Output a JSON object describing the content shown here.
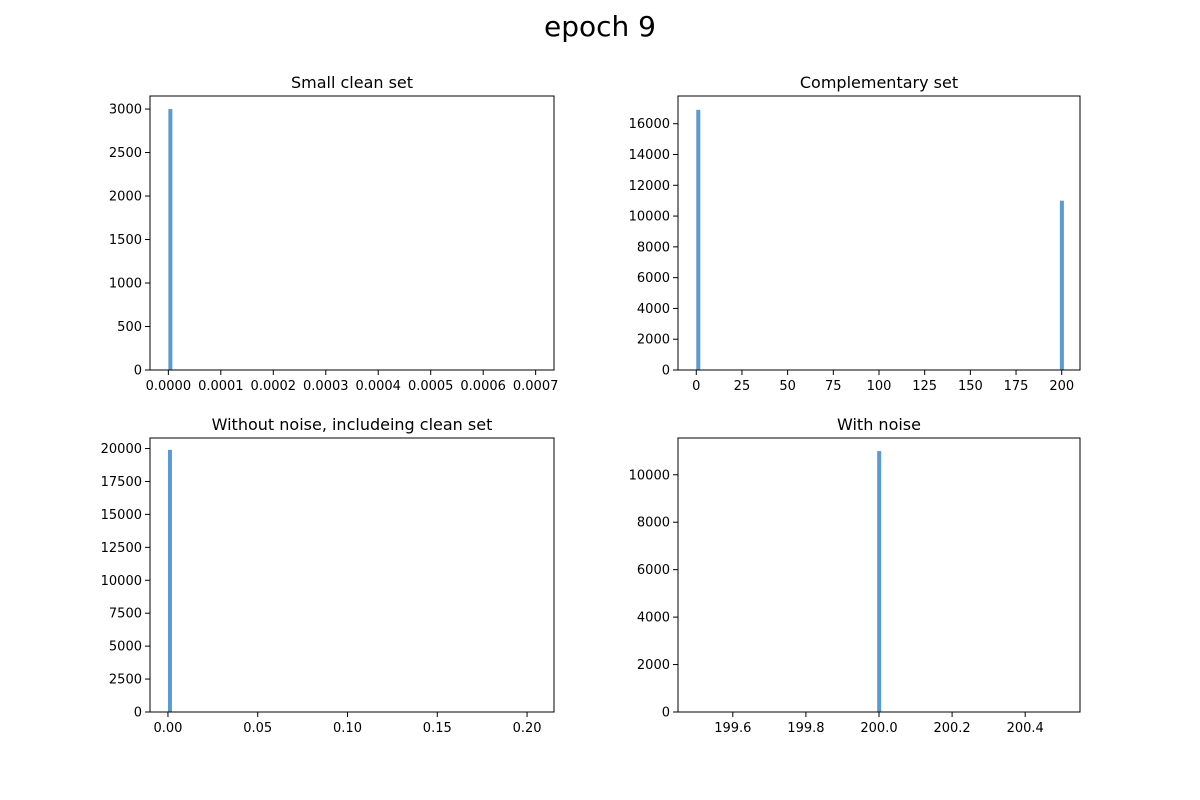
{
  "suptitle": "epoch 9",
  "colors": {
    "bar": "#5b9bd5",
    "axis": "#000000"
  },
  "chart_data": [
    {
      "type": "bar",
      "title": "Small clean set",
      "xlim": [
        -3.5e-05,
        0.000735
      ],
      "ylim": [
        0,
        3150
      ],
      "xticks": [
        "0.0000",
        "0.0001",
        "0.0002",
        "0.0003",
        "0.0004",
        "0.0005",
        "0.0006",
        "0.0007"
      ],
      "xtick_values": [
        0,
        0.0001,
        0.0002,
        0.0003,
        0.0004,
        0.0005,
        0.0006,
        0.0007
      ],
      "yticks": [
        "0",
        "500",
        "1000",
        "1500",
        "2000",
        "2500",
        "3000"
      ],
      "ytick_values": [
        0,
        500,
        1000,
        1500,
        2000,
        2500,
        3000
      ],
      "bars": [
        {
          "x": 0.0,
          "value": 3000
        }
      ],
      "bin_width": 7.2e-06
    },
    {
      "type": "bar",
      "title": "Complementary set",
      "xlim": [
        -10,
        210
      ],
      "ylim": [
        0,
        17800
      ],
      "xticks": [
        "0",
        "25",
        "50",
        "75",
        "100",
        "125",
        "150",
        "175",
        "200"
      ],
      "xtick_values": [
        0,
        25,
        50,
        75,
        100,
        125,
        150,
        175,
        200
      ],
      "yticks": [
        "0",
        "2000",
        "4000",
        "6000",
        "8000",
        "10000",
        "12000",
        "14000",
        "16000"
      ],
      "ytick_values": [
        0,
        2000,
        4000,
        6000,
        8000,
        10000,
        12000,
        14000,
        16000
      ],
      "bars": [
        {
          "x": 0.0,
          "value": 16900
        },
        {
          "x": 199.0,
          "value": 11000
        }
      ],
      "bin_width": 2
    },
    {
      "type": "bar",
      "title": "Without noise, includeing clean set",
      "xlim": [
        -0.01,
        0.215
      ],
      "ylim": [
        0,
        20800
      ],
      "xticks": [
        "0.00",
        "0.05",
        "0.10",
        "0.15",
        "0.20"
      ],
      "xtick_values": [
        0,
        0.05,
        0.1,
        0.15,
        0.2
      ],
      "yticks": [
        "0",
        "2500",
        "5000",
        "7500",
        "10000",
        "12500",
        "15000",
        "17500",
        "20000"
      ],
      "ytick_values": [
        0,
        2500,
        5000,
        7500,
        10000,
        12500,
        15000,
        17500,
        20000
      ],
      "bars": [
        {
          "x": 0.0,
          "value": 19900
        }
      ],
      "bin_width": 0.002
    },
    {
      "type": "bar",
      "title": "With noise",
      "xlim": [
        199.45,
        200.55
      ],
      "ylim": [
        0,
        11550
      ],
      "xticks": [
        "199.6",
        "199.8",
        "200.0",
        "200.2",
        "200.4"
      ],
      "xtick_values": [
        199.6,
        199.8,
        200.0,
        200.2,
        200.4
      ],
      "yticks": [
        "0",
        "2000",
        "4000",
        "6000",
        "8000",
        "10000"
      ],
      "ytick_values": [
        0,
        2000,
        4000,
        6000,
        8000,
        10000
      ],
      "bars": [
        {
          "x": 199.995,
          "value": 11000
        }
      ],
      "bin_width": 0.01
    }
  ]
}
